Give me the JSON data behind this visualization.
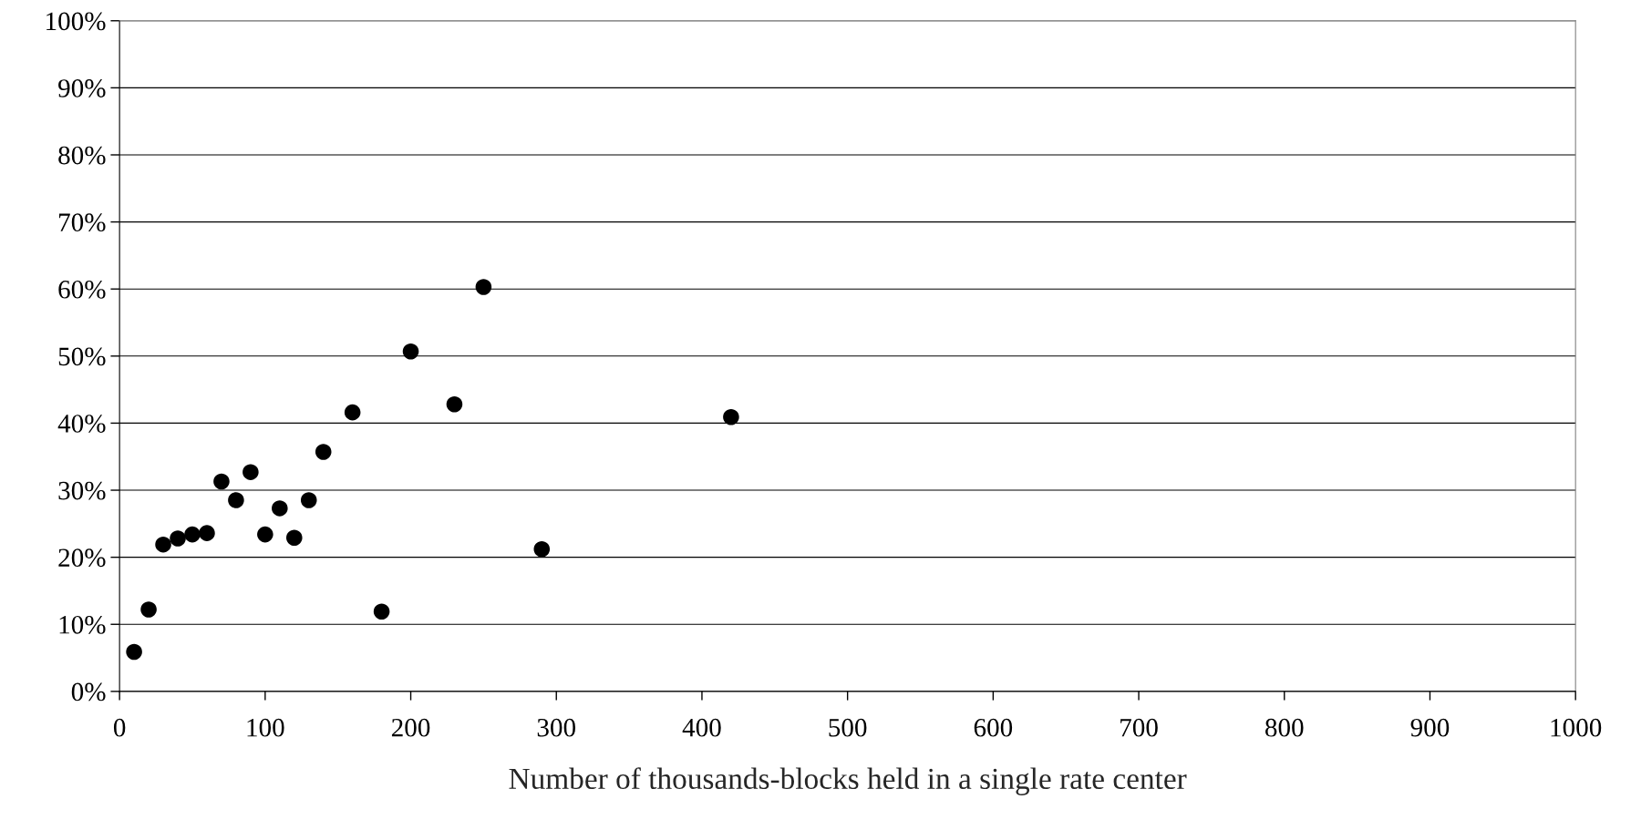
{
  "chart_data": {
    "type": "scatter",
    "xlabel": "Number of thousands-blocks held in a single rate center",
    "x": [
      10,
      20,
      30,
      40,
      50,
      60,
      70,
      80,
      90,
      100,
      110,
      120,
      130,
      140,
      160,
      180,
      200,
      230,
      250,
      290,
      420
    ],
    "series": [
      {
        "color": "#000000",
        "values": [
          5.9,
          12.2,
          21.9,
          22.8,
          23.4,
          23.6,
          31.3,
          28.5,
          32.7,
          23.4,
          27.3,
          22.9,
          28.5,
          35.7,
          41.6,
          11.9,
          50.7,
          42.8,
          60.3,
          21.2,
          40.9
        ]
      }
    ],
    "xlim": [
      0,
      1000
    ],
    "xticks": [
      0,
      100,
      200,
      300,
      400,
      500,
      600,
      700,
      800,
      900,
      1000
    ],
    "ylim": [
      0,
      100
    ],
    "yticks": [
      {
        "value": 0,
        "label": "0%"
      },
      {
        "value": 10,
        "label": "10%"
      },
      {
        "value": 20,
        "label": "20%"
      },
      {
        "value": 30,
        "label": "30%"
      },
      {
        "value": 40,
        "label": "40%"
      },
      {
        "value": 50,
        "label": "50%"
      },
      {
        "value": 60,
        "label": "60%"
      },
      {
        "value": 70,
        "label": "70%"
      },
      {
        "value": 80,
        "label": "80%"
      },
      {
        "value": 90,
        "label": "90%"
      },
      {
        "value": 100,
        "label": "100%"
      }
    ],
    "grid": "y",
    "marker": "circle"
  }
}
